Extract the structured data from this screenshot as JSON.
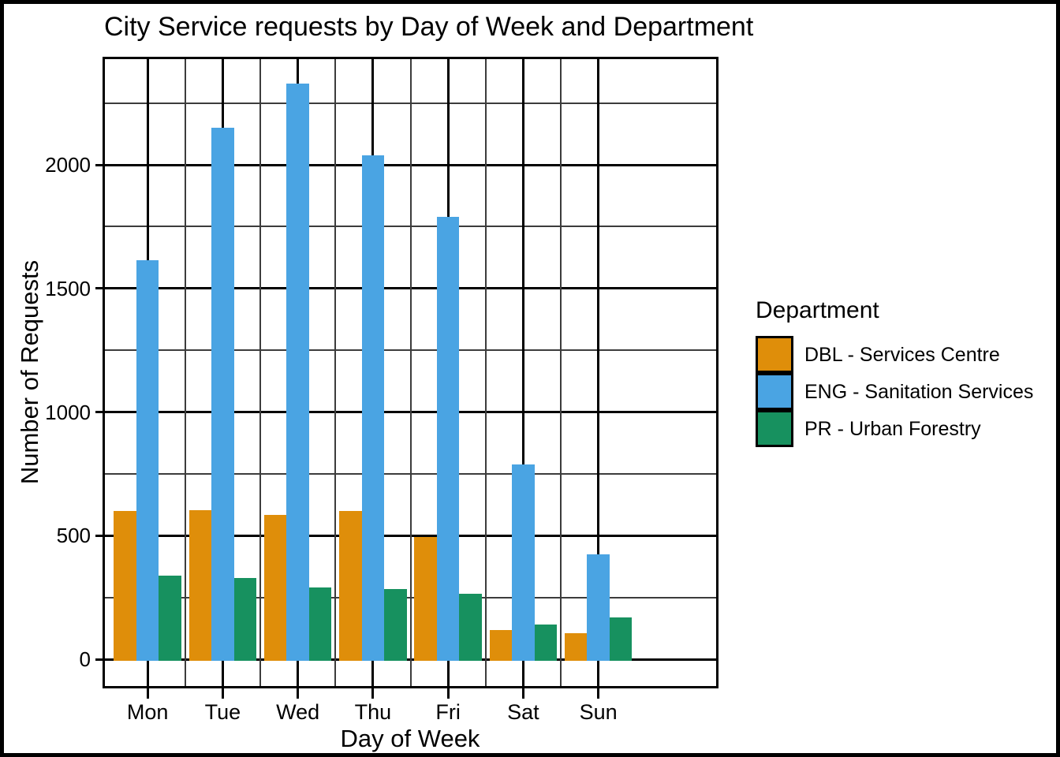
{
  "chart_data": {
    "type": "bar",
    "title": "City Service requests by Day of Week and Department",
    "xlabel": "Day of Week",
    "ylabel": "Number of Requests",
    "legend_title": "Department",
    "legend_position": "right",
    "grid": "major-and-minor",
    "categories": [
      "Mon",
      "Tue",
      "Wed",
      "Thu",
      "Fri",
      "Sat",
      "Sun"
    ],
    "series": [
      {
        "name": "DBL - Services Centre",
        "color": "#DF8E0A",
        "values": [
          600,
          605,
          585,
          600,
          495,
          120,
          105
        ]
      },
      {
        "name": "ENG - Sanitation Services",
        "color": "#4AA4E3",
        "values": [
          1615,
          2150,
          2330,
          2040,
          1790,
          790,
          425
        ]
      },
      {
        "name": "PR - Urban Forestry",
        "color": "#17915F",
        "values": [
          340,
          330,
          290,
          285,
          265,
          140,
          170
        ]
      }
    ],
    "y_major_ticks": [
      0,
      500,
      1000,
      1500,
      2000
    ],
    "y_minor_ticks": [
      250,
      750,
      1250,
      1750,
      2250
    ],
    "ylim": [
      -117,
      2437
    ]
  }
}
